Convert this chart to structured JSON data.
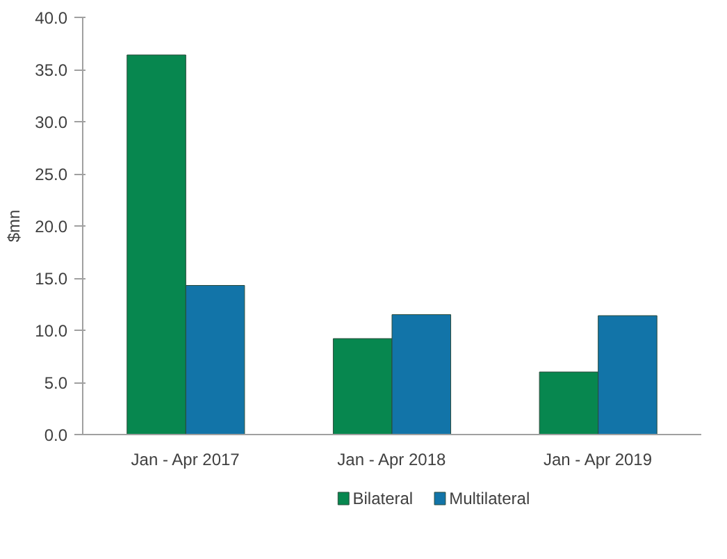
{
  "chart_data": {
    "type": "bar",
    "ylabel": "$mn",
    "categories": [
      "Jan - Apr 2017",
      "Jan - Apr 2018",
      "Jan - Apr 2019"
    ],
    "series": [
      {
        "name": "Bilateral",
        "color": "#07874f",
        "values": [
          36.4,
          9.2,
          6.0
        ]
      },
      {
        "name": "Multilateral",
        "color": "#1274a8",
        "values": [
          14.3,
          11.5,
          11.4
        ]
      }
    ],
    "ylim": [
      0,
      40
    ],
    "yticks": [
      {
        "value": 0,
        "label": "0.0"
      },
      {
        "value": 5,
        "label": "5.0"
      },
      {
        "value": 10,
        "label": "10.0"
      },
      {
        "value": 15,
        "label": "15.0"
      },
      {
        "value": 20,
        "label": "20.0"
      },
      {
        "value": 25,
        "label": "25.0"
      },
      {
        "value": 30,
        "label": "30.0"
      },
      {
        "value": 35,
        "label": "35.0"
      },
      {
        "value": 40,
        "label": "40.0"
      }
    ],
    "grid": false,
    "legend": "bottom"
  }
}
